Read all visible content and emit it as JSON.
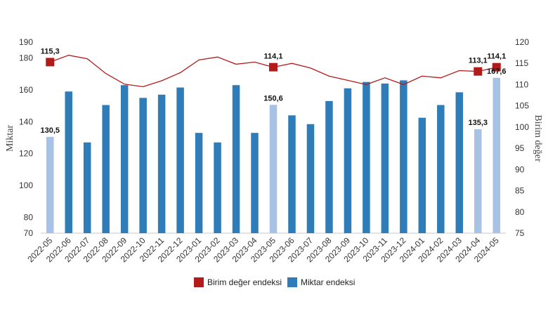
{
  "chart_data": {
    "type": "bar+line",
    "categories": [
      "2022-05",
      "2022-06",
      "2022-07",
      "2022-08",
      "2022-09",
      "2022-10",
      "2022-11",
      "2022-12",
      "2023-01",
      "2023-02",
      "2023-03",
      "2023-04",
      "2023-05",
      "2023-06",
      "2023-07",
      "2023-08",
      "2023-09",
      "2023-10",
      "2023-11",
      "2023-12",
      "2024-01",
      "2024-02",
      "2024-03",
      "2024-04",
      "2024-05"
    ],
    "y_left": {
      "label": "Miktar",
      "range": [
        70,
        190
      ],
      "ticks": [
        70,
        80,
        100,
        120,
        140,
        160,
        180,
        190
      ]
    },
    "y_right": {
      "label": "Birim değer",
      "range": [
        75,
        120
      ],
      "ticks": [
        75,
        80,
        85,
        90,
        95,
        100,
        105,
        110,
        115,
        120
      ]
    },
    "series": [
      {
        "name": "Miktar endeksi",
        "type": "bar",
        "axis": "left",
        "values": [
          130.5,
          159,
          127,
          150.5,
          163,
          155,
          157,
          161.5,
          133,
          127,
          163,
          133,
          150.6,
          144,
          138.5,
          153,
          161,
          165,
          164,
          166,
          142.5,
          150.5,
          158.5,
          135.3,
          167.6
        ]
      },
      {
        "name": "Birim değer endeksi",
        "type": "line",
        "axis": "right",
        "values": [
          115.3,
          116.9,
          116.1,
          112.6,
          110.1,
          109.5,
          110.9,
          112.8,
          115.8,
          116.5,
          114.8,
          115.3,
          114.1,
          115.0,
          113.9,
          112.0,
          111.0,
          110.0,
          111.6,
          110.0,
          112.0,
          111.6,
          113.3,
          113.1,
          114.1
        ]
      }
    ],
    "highlighted_categories": [
      "2022-05",
      "2023-05",
      "2024-04",
      "2024-05"
    ],
    "bar_labels": [
      {
        "category": "2022-05",
        "text": "130,5"
      },
      {
        "category": "2023-05",
        "text": "150,6"
      },
      {
        "category": "2024-04",
        "text": "135,3"
      },
      {
        "category": "2024-05",
        "text": "167,6"
      }
    ],
    "line_labels": [
      {
        "category": "2022-05",
        "text": "115,3"
      },
      {
        "category": "2023-05",
        "text": "114,1"
      },
      {
        "category": "2024-04",
        "text": "113,1"
      },
      {
        "category": "2024-05",
        "text": "114,1"
      }
    ],
    "legend": {
      "position": "bottom",
      "items": [
        {
          "name": "Birim değer endeksi",
          "color": "#b31b1b"
        },
        {
          "name": "Miktar endeksi",
          "color": "#2e7cb8"
        }
      ]
    },
    "colors": {
      "bar": "#2e7cb8",
      "bar_highlight": "#a8c2e6",
      "line": "#b31b1b",
      "marker": "#b31b1b"
    },
    "grid": false
  }
}
